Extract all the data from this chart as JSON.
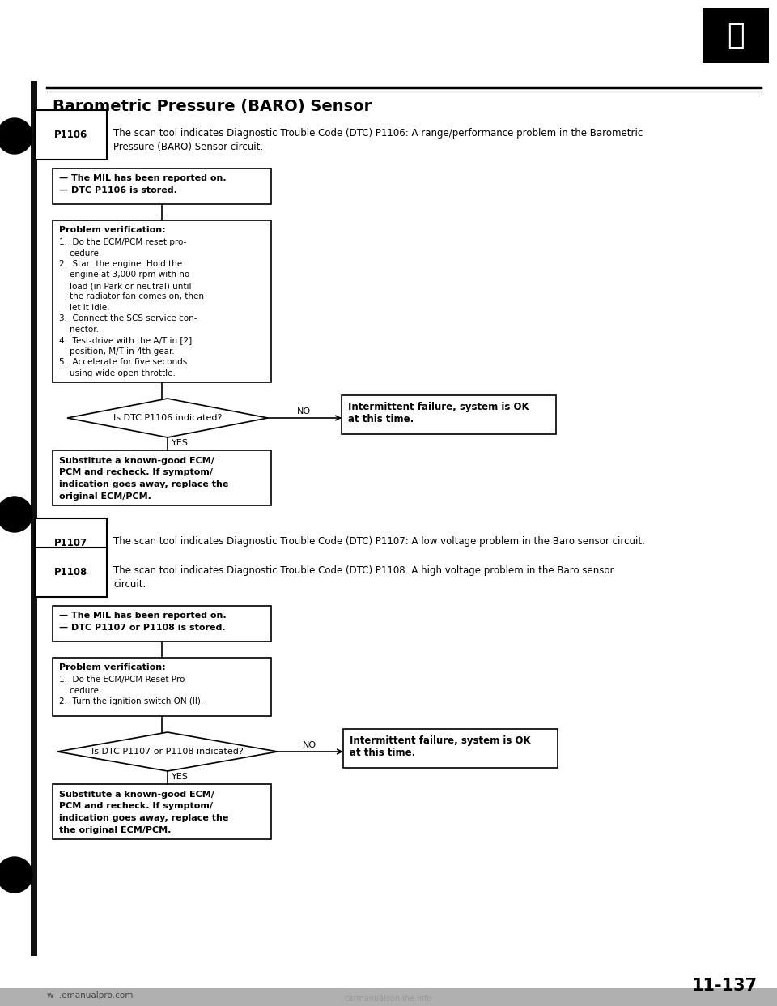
{
  "title": "Barometric Pressure (BARO) Sensor",
  "page_number": "11-137",
  "website": "w   .emanualpro.com",
  "bg_color": "#ffffff",
  "p1106_label": "P1106",
  "p1106_text": "The scan tool indicates Diagnostic Trouble Code (DTC) P1106: A range/performance problem in the Barometric\nPressure (BARO) Sensor circuit.",
  "box1_lines": [
    "— The MIL has been reported on.",
    "— DTC P1106 is stored."
  ],
  "prob_verif1_title": "Problem verification:",
  "prob_verif1_lines": [
    "1.  Do the ECM/PCM reset pro-",
    "    cedure.",
    "2.  Start the engine. Hold the",
    "    engine at 3,000 rpm with no",
    "    load (in Park or neutral) until",
    "    the radiator fan comes on, then",
    "    let it idle.",
    "3.  Connect the SCS service con-",
    "    nector.",
    "4.  Test-drive with the A/T in [2]",
    "    position, M/T in 4th gear.",
    "5.  Accelerate for five seconds",
    "    using wide open throttle."
  ],
  "diamond1_text": "Is DTC P1106 indicated?",
  "no1_label": "NO",
  "yes1_label": "YES",
  "intermittent1_line1": "Intermittent failure, system is OK",
  "intermittent1_line2": "at this time.",
  "sub1_lines": [
    "Substitute a known-good ECM/",
    "PCM and recheck. If symptom/",
    "indication goes away, replace the",
    "original ECM/PCM."
  ],
  "p1107_label": "P1107",
  "p1107_text": "The scan tool indicates Diagnostic Trouble Code (DTC) P1107: A low voltage problem in the Baro sensor circuit.",
  "p1108_label": "P1108",
  "p1108_text": "The scan tool indicates Diagnostic Trouble Code (DTC) P1108: A high voltage problem in the Baro sensor\ncircuit.",
  "box2_lines": [
    "— The MIL has been reported on.",
    "— DTC P1107 or P1108 is stored."
  ],
  "prob_verif2_title": "Problem verification:",
  "prob_verif2_lines": [
    "1.  Do the ECM/PCM Reset Pro-",
    "    cedure.",
    "2.  Turn the ignition switch ON (II)."
  ],
  "diamond2_text": "Is DTC P1107 or P1108 indicated?",
  "no2_label": "NO",
  "yes2_label": "YES",
  "intermittent2_line1": "Intermittent failure, system is OK",
  "intermittent2_line2": "at this time.",
  "sub2_lines": [
    "Substitute a known-good ECM/",
    "PCM and recheck. If symptom/",
    "indication goes away, replace the",
    "the original ECM/PCM."
  ]
}
